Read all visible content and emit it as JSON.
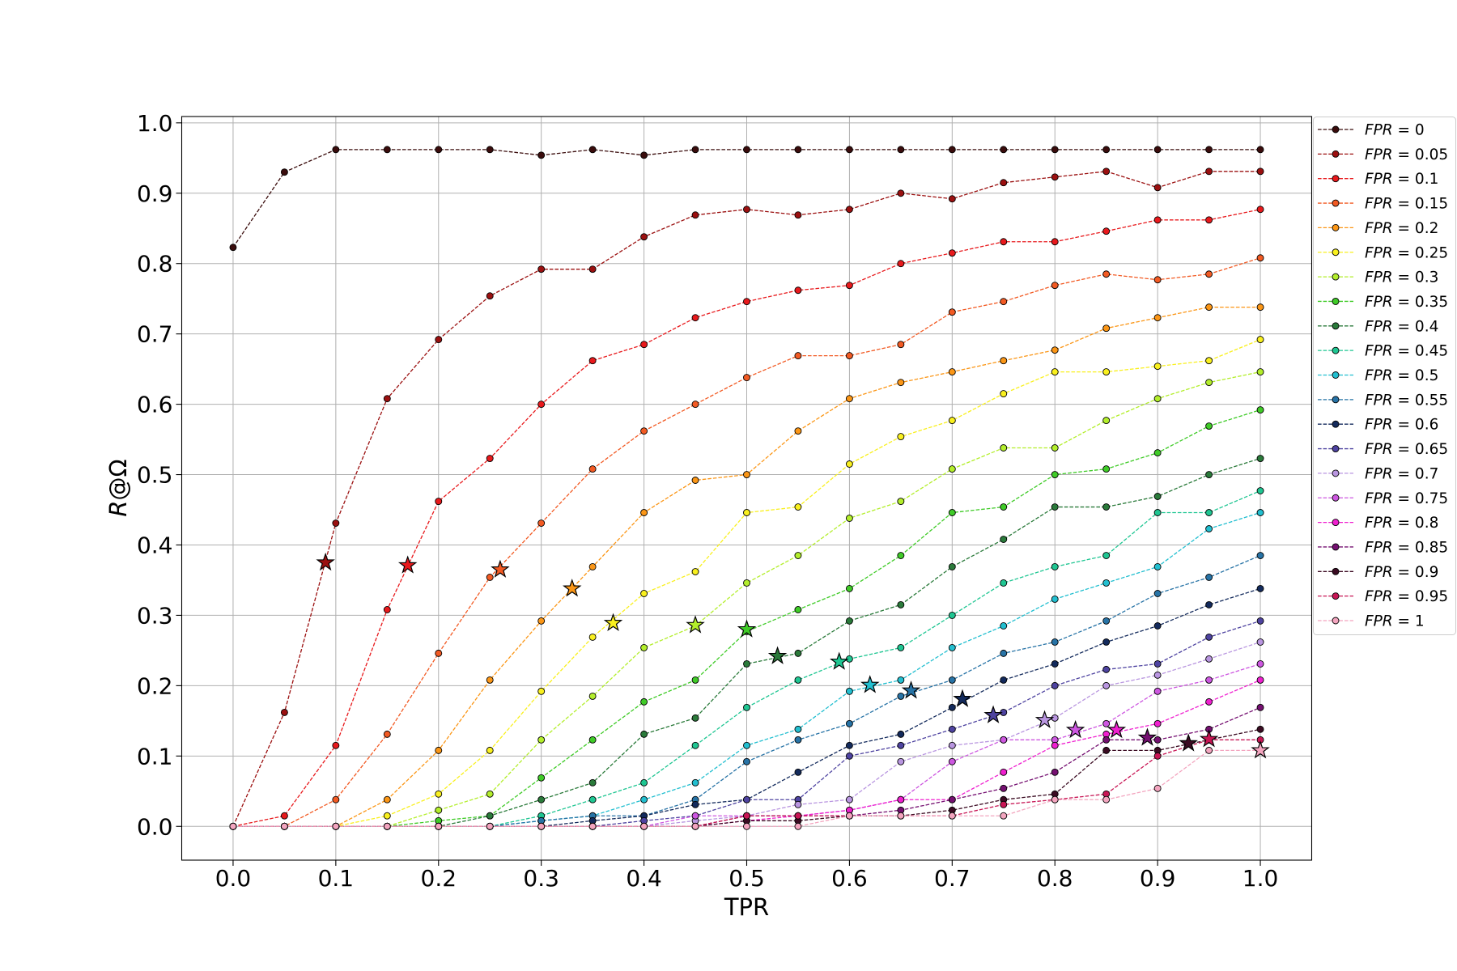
{
  "chart_data": {
    "type": "line",
    "xlabel": "TPR",
    "ylabel": "R@Ω",
    "xlim": [
      -0.05,
      1.05
    ],
    "ylim": [
      -0.048,
      1.009
    ],
    "grid": true,
    "legend": "upper right, outside plot area",
    "xticks": [
      "0.0",
      "0.1",
      "0.2",
      "0.3",
      "0.4",
      "0.5",
      "0.6",
      "0.7",
      "0.8",
      "0.9",
      "1.0"
    ],
    "yticks": [
      "0.0",
      "0.1",
      "0.2",
      "0.3",
      "0.4",
      "0.5",
      "0.6",
      "0.7",
      "0.8",
      "0.9",
      "1.0"
    ],
    "x": [
      0,
      0.05,
      0.1,
      0.15,
      0.2,
      0.25,
      0.3,
      0.35,
      0.4,
      0.45,
      0.5,
      0.55,
      0.6,
      0.65,
      0.7,
      0.75,
      0.8,
      0.85,
      0.9,
      0.95,
      1.0
    ],
    "series": [
      {
        "name": "FPR = 0",
        "color": "#3a0c0c",
        "values": [
          0.823,
          0.93,
          0.962,
          0.962,
          0.962,
          0.962,
          0.954,
          0.962,
          0.954,
          0.962,
          0.962,
          0.962,
          0.962,
          0.962,
          0.962,
          0.962,
          0.962,
          0.962,
          0.962,
          0.962,
          0.962
        ],
        "star": null
      },
      {
        "name": "FPR = 0.05",
        "color": "#9b1010",
        "values": [
          0,
          0.162,
          0.431,
          0.608,
          0.692,
          0.754,
          0.792,
          0.792,
          0.838,
          0.869,
          0.877,
          0.869,
          0.877,
          0.9,
          0.892,
          0.915,
          0.923,
          0.931,
          0.908,
          0.931,
          0.931
        ],
        "star": {
          "x": 0.09,
          "y": 0.375
        }
      },
      {
        "name": "FPR = 0.1",
        "color": "#e8191c",
        "values": [
          0,
          0.015,
          0.115,
          0.308,
          0.462,
          0.523,
          0.6,
          0.662,
          0.685,
          0.723,
          0.746,
          0.762,
          0.769,
          0.8,
          0.815,
          0.831,
          0.831,
          0.846,
          0.862,
          0.862,
          0.877
        ],
        "star": {
          "x": 0.17,
          "y": 0.371
        }
      },
      {
        "name": "FPR = 0.15",
        "color": "#f25a23",
        "values": [
          0,
          0,
          0.038,
          0.131,
          0.246,
          0.354,
          0.431,
          0.508,
          0.562,
          0.6,
          0.638,
          0.669,
          0.669,
          0.685,
          0.731,
          0.746,
          0.769,
          0.785,
          0.777,
          0.785,
          0.808
        ],
        "star": {
          "x": 0.26,
          "y": 0.365
        }
      },
      {
        "name": "FPR = 0.2",
        "color": "#fb9616",
        "values": [
          0,
          0,
          0,
          0.038,
          0.108,
          0.208,
          0.292,
          0.369,
          0.446,
          0.492,
          0.5,
          0.562,
          0.608,
          0.631,
          0.646,
          0.662,
          0.677,
          0.708,
          0.723,
          0.738,
          0.738
        ],
        "star": {
          "x": 0.33,
          "y": 0.338
        }
      },
      {
        "name": "FPR = 0.25",
        "color": "#f9f01e",
        "values": [
          0,
          0,
          0,
          0.015,
          0.046,
          0.108,
          0.192,
          0.269,
          0.331,
          0.362,
          0.446,
          0.454,
          0.515,
          0.554,
          0.577,
          0.615,
          0.646,
          0.646,
          0.654,
          0.662,
          0.692
        ],
        "star": {
          "x": 0.37,
          "y": 0.289
        }
      },
      {
        "name": "FPR = 0.3",
        "color": "#b3ee2b",
        "values": [
          0,
          0,
          0,
          0,
          0.023,
          0.046,
          0.123,
          0.185,
          0.254,
          0.285,
          0.346,
          0.385,
          0.438,
          0.462,
          0.508,
          0.538,
          0.538,
          0.577,
          0.608,
          0.631,
          0.646
        ],
        "star": {
          "x": 0.45,
          "y": 0.286
        }
      },
      {
        "name": "FPR = 0.35",
        "color": "#3fcb27",
        "values": [
          0,
          0,
          0,
          0,
          0.008,
          0.015,
          0.069,
          0.123,
          0.177,
          0.208,
          0.277,
          0.308,
          0.338,
          0.385,
          0.446,
          0.454,
          0.5,
          0.508,
          0.531,
          0.569,
          0.592
        ],
        "star": {
          "x": 0.5,
          "y": 0.28
        }
      },
      {
        "name": "FPR = 0.4",
        "color": "#2a7a3a",
        "values": [
          0,
          0,
          0,
          0,
          0,
          0.015,
          0.038,
          0.062,
          0.131,
          0.154,
          0.231,
          0.246,
          0.292,
          0.315,
          0.369,
          0.408,
          0.454,
          0.454,
          0.469,
          0.5,
          0.523
        ],
        "star": {
          "x": 0.53,
          "y": 0.242
        }
      },
      {
        "name": "FPR = 0.45",
        "color": "#1fc692",
        "values": [
          0,
          0,
          0,
          0,
          0,
          0,
          0.015,
          0.038,
          0.062,
          0.115,
          0.169,
          0.208,
          0.238,
          0.254,
          0.3,
          0.346,
          0.369,
          0.385,
          0.446,
          0.446,
          0.477
        ],
        "star": {
          "x": 0.59,
          "y": 0.234
        }
      },
      {
        "name": "FPR = 0.5",
        "color": "#22bfd0",
        "values": [
          0,
          0,
          0,
          0,
          0,
          0,
          0.008,
          0.015,
          0.038,
          0.062,
          0.115,
          0.138,
          0.192,
          0.208,
          0.254,
          0.285,
          0.323,
          0.346,
          0.369,
          0.423,
          0.446
        ],
        "star": {
          "x": 0.62,
          "y": 0.201
        }
      },
      {
        "name": "FPR = 0.55",
        "color": "#2773a6",
        "values": [
          0,
          0,
          0,
          0,
          0,
          0,
          0.008,
          0.015,
          0.015,
          0.038,
          0.092,
          0.123,
          0.146,
          0.185,
          0.208,
          0.246,
          0.262,
          0.292,
          0.331,
          0.354,
          0.385
        ],
        "star": {
          "x": 0.66,
          "y": 0.193
        }
      },
      {
        "name": "FPR = 0.6",
        "color": "#132a5c",
        "values": [
          0,
          0,
          0,
          0,
          0,
          0,
          0,
          0.008,
          0.015,
          0.031,
          0.038,
          0.077,
          0.115,
          0.131,
          0.169,
          0.208,
          0.231,
          0.262,
          0.285,
          0.315,
          0.338
        ],
        "star": {
          "x": 0.71,
          "y": 0.181
        }
      },
      {
        "name": "FPR = 0.65",
        "color": "#4e43a0",
        "values": [
          0,
          0,
          0,
          0,
          0,
          0,
          0,
          0,
          0.008,
          0.015,
          0.038,
          0.038,
          0.1,
          0.115,
          0.138,
          0.162,
          0.2,
          0.223,
          0.231,
          0.269,
          0.292
        ],
        "star": {
          "x": 0.74,
          "y": 0.158
        }
      },
      {
        "name": "FPR = 0.7",
        "color": "#b996e0",
        "values": [
          0,
          0,
          0,
          0,
          0,
          0,
          0,
          0,
          0,
          0.008,
          0.015,
          0.031,
          0.038,
          0.092,
          0.115,
          0.123,
          0.154,
          0.2,
          0.215,
          0.238,
          0.262
        ],
        "star": {
          "x": 0.79,
          "y": 0.151
        }
      },
      {
        "name": "FPR = 0.75",
        "color": "#cd57e0",
        "values": [
          0,
          0,
          0,
          0,
          0,
          0,
          0,
          0,
          0,
          0.015,
          0.015,
          0.015,
          0.023,
          0.038,
          0.092,
          0.123,
          0.123,
          0.146,
          0.192,
          0.208,
          0.231
        ],
        "star": {
          "x": 0.82,
          "y": 0.137
        }
      },
      {
        "name": "FPR = 0.8",
        "color": "#ef1fcf",
        "values": [
          0,
          0,
          0,
          0,
          0,
          0,
          0,
          0,
          0,
          0,
          0.008,
          0.015,
          0.023,
          0.038,
          0.038,
          0.077,
          0.115,
          0.131,
          0.146,
          0.177,
          0.208
        ],
        "star": {
          "x": 0.86,
          "y": 0.137
        }
      },
      {
        "name": "FPR = 0.85",
        "color": "#751071",
        "values": [
          0,
          0,
          0,
          0,
          0,
          0,
          0,
          0,
          0,
          0,
          0.015,
          0.015,
          0.015,
          0.023,
          0.038,
          0.054,
          0.077,
          0.123,
          0.123,
          0.138,
          0.169
        ],
        "star": {
          "x": 0.89,
          "y": 0.126
        }
      },
      {
        "name": "FPR = 0.9",
        "color": "#3b0b22",
        "values": [
          0,
          0,
          0,
          0,
          0,
          0,
          0,
          0,
          0,
          0,
          0.008,
          0.008,
          0.015,
          0.015,
          0.023,
          0.038,
          0.046,
          0.108,
          0.108,
          0.123,
          0.138
        ],
        "star": {
          "x": 0.93,
          "y": 0.118
        }
      },
      {
        "name": "FPR = 0.95",
        "color": "#c81655",
        "values": [
          0,
          0,
          0,
          0,
          0,
          0,
          0,
          0,
          0,
          0,
          0.015,
          0.015,
          0.015,
          0.015,
          0.015,
          0.031,
          0.038,
          0.046,
          0.1,
          0.123,
          0.123
        ],
        "star": {
          "x": 0.95,
          "y": 0.124
        }
      },
      {
        "name": "FPR = 1",
        "color": "#f3a5bf",
        "values": [
          0,
          0,
          0,
          0,
          0,
          0,
          0,
          0,
          0,
          0,
          0,
          0,
          0.015,
          0.015,
          0.015,
          0.015,
          0.038,
          0.038,
          0.054,
          0.108,
          0.108
        ],
        "star": {
          "x": 1.0,
          "y": 0.108
        }
      }
    ]
  }
}
